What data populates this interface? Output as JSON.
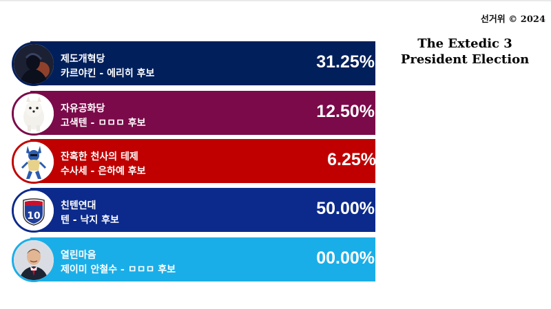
{
  "header": {
    "copyright": "선거위 © 2024",
    "title_line1": "The Extedic 3",
    "title_line2": "President Election"
  },
  "chart_data": {
    "type": "bar",
    "title": "The Extedic 3 President Election",
    "categories": [
      "제도개혁당",
      "자유공화당",
      "잔혹한 천사의 테제",
      "친텐연대",
      "열린마음"
    ],
    "values": [
      31.25,
      12.5,
      6.25,
      50.0,
      0.0
    ],
    "unit": "%",
    "rows": [
      {
        "party": "제도개혁당",
        "candidate": "카르야킨 - 에리히 후보",
        "percent_label": "31.25%",
        "value": 31.25,
        "color": "#001f5b",
        "avatar_icon": "dark-figure-portrait-icon"
      },
      {
        "party": "자유공화당",
        "candidate": "고색텐 - ㅁㅁㅁ 후보",
        "percent_label": "12.50%",
        "value": 12.5,
        "color": "#7b0a4a",
        "avatar_icon": "white-puppy-portrait-icon"
      },
      {
        "party": "잔혹한 천사의 테제",
        "candidate": "수사세 - 은하예 후보",
        "percent_label": "6.25%",
        "value": 6.25,
        "color": "#c00000",
        "avatar_icon": "blue-creature-portrait-icon"
      },
      {
        "party": "친텐연대",
        "candidate": "텐 - 낙지 후보",
        "percent_label": "50.00%",
        "value": 50.0,
        "color": "#0b2a8c",
        "avatar_icon": "interstate-10-shield-icon"
      },
      {
        "party": "열린마음",
        "candidate": "제이미 안철수 - ㅁㅁㅁ 후보",
        "percent_label": "00.00%",
        "value": 0.0,
        "color": "#1aaee8",
        "avatar_icon": "man-in-suit-portrait-icon"
      }
    ]
  }
}
